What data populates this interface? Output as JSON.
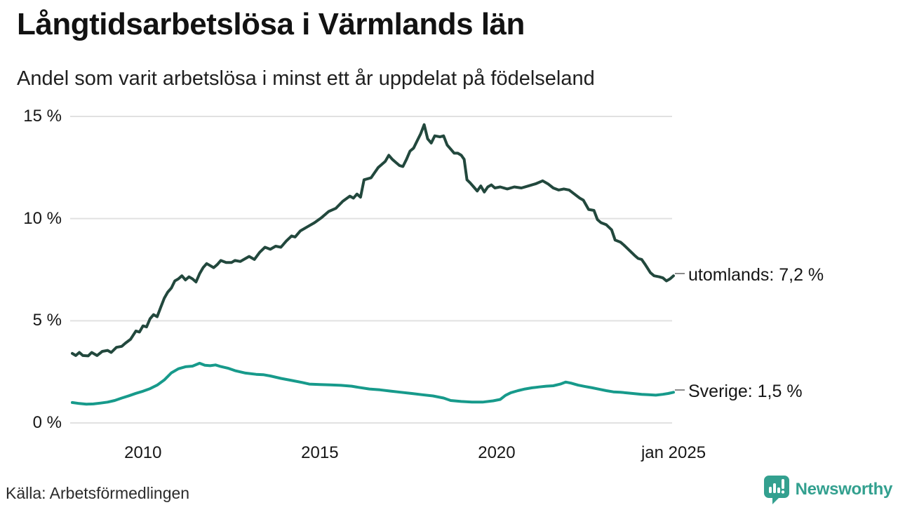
{
  "header": {
    "title": "Långtidsarbetslösa i Värmlands län",
    "subtitle": "Andel som varit arbetslösa i minst ett år uppdelat på födelseland"
  },
  "chart_data": {
    "type": "line",
    "title": "Långtidsarbetslösa i Värmlands län",
    "subtitle": "Andel som varit arbetslösa i minst ett år uppdelat på födelseland",
    "grid": "horizontal",
    "legend_position": "right-end-labels",
    "x_axis": {
      "min": 2008,
      "max": 2025,
      "ticks": [
        {
          "value": 2010,
          "label": "2010"
        },
        {
          "value": 2015,
          "label": "2015"
        },
        {
          "value": 2020,
          "label": "2020"
        },
        {
          "value": 2025,
          "label": "jan 2025"
        }
      ]
    },
    "y_axis": {
      "min": 0,
      "max": 15,
      "unit": "%",
      "ticks": [
        {
          "value": 0,
          "label": "0 %"
        },
        {
          "value": 5,
          "label": "5 %"
        },
        {
          "value": 10,
          "label": "10 %"
        },
        {
          "value": 15,
          "label": "15 %"
        }
      ]
    },
    "series": [
      {
        "name": "utomlands",
        "end_label": "utomlands: 7,2 %",
        "last_value": 7.2,
        "color": "#22483d",
        "points": [
          [
            2008.0,
            3.4
          ],
          [
            2008.1,
            3.3
          ],
          [
            2008.2,
            3.45
          ],
          [
            2008.3,
            3.3
          ],
          [
            2008.45,
            3.28
          ],
          [
            2008.55,
            3.45
          ],
          [
            2008.7,
            3.3
          ],
          [
            2008.85,
            3.5
          ],
          [
            2009.0,
            3.55
          ],
          [
            2009.1,
            3.45
          ],
          [
            2009.25,
            3.7
          ],
          [
            2009.4,
            3.75
          ],
          [
            2009.5,
            3.9
          ],
          [
            2009.65,
            4.1
          ],
          [
            2009.8,
            4.5
          ],
          [
            2009.9,
            4.45
          ],
          [
            2010.0,
            4.75
          ],
          [
            2010.1,
            4.7
          ],
          [
            2010.2,
            5.1
          ],
          [
            2010.3,
            5.3
          ],
          [
            2010.4,
            5.2
          ],
          [
            2010.5,
            5.65
          ],
          [
            2010.6,
            6.1
          ],
          [
            2010.7,
            6.4
          ],
          [
            2010.8,
            6.6
          ],
          [
            2010.9,
            6.95
          ],
          [
            2011.0,
            7.05
          ],
          [
            2011.1,
            7.2
          ],
          [
            2011.2,
            7.0
          ],
          [
            2011.3,
            7.15
          ],
          [
            2011.4,
            7.05
          ],
          [
            2011.5,
            6.9
          ],
          [
            2011.6,
            7.3
          ],
          [
            2011.7,
            7.6
          ],
          [
            2011.8,
            7.8
          ],
          [
            2011.9,
            7.7
          ],
          [
            2012.0,
            7.6
          ],
          [
            2012.1,
            7.75
          ],
          [
            2012.2,
            7.95
          ],
          [
            2012.35,
            7.85
          ],
          [
            2012.5,
            7.85
          ],
          [
            2012.6,
            7.95
          ],
          [
            2012.75,
            7.9
          ],
          [
            2012.9,
            8.05
          ],
          [
            2013.0,
            8.15
          ],
          [
            2013.15,
            8.0
          ],
          [
            2013.3,
            8.35
          ],
          [
            2013.45,
            8.6
          ],
          [
            2013.6,
            8.5
          ],
          [
            2013.75,
            8.65
          ],
          [
            2013.9,
            8.6
          ],
          [
            2014.05,
            8.9
          ],
          [
            2014.2,
            9.15
          ],
          [
            2014.3,
            9.1
          ],
          [
            2014.45,
            9.4
          ],
          [
            2014.65,
            9.6
          ],
          [
            2014.85,
            9.8
          ],
          [
            2015.05,
            10.05
          ],
          [
            2015.25,
            10.35
          ],
          [
            2015.45,
            10.5
          ],
          [
            2015.65,
            10.85
          ],
          [
            2015.85,
            11.1
          ],
          [
            2015.95,
            11.0
          ],
          [
            2016.05,
            11.2
          ],
          [
            2016.15,
            11.05
          ],
          [
            2016.25,
            11.9
          ],
          [
            2016.35,
            11.95
          ],
          [
            2016.45,
            12.0
          ],
          [
            2016.55,
            12.25
          ],
          [
            2016.65,
            12.5
          ],
          [
            2016.75,
            12.65
          ],
          [
            2016.85,
            12.8
          ],
          [
            2016.95,
            13.1
          ],
          [
            2017.05,
            12.9
          ],
          [
            2017.15,
            12.75
          ],
          [
            2017.25,
            12.6
          ],
          [
            2017.35,
            12.55
          ],
          [
            2017.45,
            12.9
          ],
          [
            2017.55,
            13.3
          ],
          [
            2017.65,
            13.45
          ],
          [
            2017.75,
            13.8
          ],
          [
            2017.85,
            14.15
          ],
          [
            2017.95,
            14.6
          ],
          [
            2018.05,
            13.9
          ],
          [
            2018.15,
            13.7
          ],
          [
            2018.25,
            14.05
          ],
          [
            2018.4,
            14.0
          ],
          [
            2018.5,
            14.05
          ],
          [
            2018.6,
            13.6
          ],
          [
            2018.7,
            13.4
          ],
          [
            2018.8,
            13.2
          ],
          [
            2018.9,
            13.2
          ],
          [
            2019.0,
            13.1
          ],
          [
            2019.08,
            12.9
          ],
          [
            2019.16,
            11.9
          ],
          [
            2019.25,
            11.75
          ],
          [
            2019.35,
            11.55
          ],
          [
            2019.45,
            11.35
          ],
          [
            2019.55,
            11.6
          ],
          [
            2019.65,
            11.3
          ],
          [
            2019.75,
            11.55
          ],
          [
            2019.85,
            11.65
          ],
          [
            2019.95,
            11.5
          ],
          [
            2020.1,
            11.55
          ],
          [
            2020.3,
            11.45
          ],
          [
            2020.5,
            11.55
          ],
          [
            2020.7,
            11.5
          ],
          [
            2020.9,
            11.6
          ],
          [
            2021.1,
            11.7
          ],
          [
            2021.3,
            11.85
          ],
          [
            2021.45,
            11.7
          ],
          [
            2021.6,
            11.5
          ],
          [
            2021.75,
            11.4
          ],
          [
            2021.9,
            11.45
          ],
          [
            2022.05,
            11.4
          ],
          [
            2022.2,
            11.2
          ],
          [
            2022.35,
            11.0
          ],
          [
            2022.45,
            10.9
          ],
          [
            2022.6,
            10.45
          ],
          [
            2022.75,
            10.4
          ],
          [
            2022.85,
            9.95
          ],
          [
            2022.95,
            9.8
          ],
          [
            2023.1,
            9.7
          ],
          [
            2023.25,
            9.45
          ],
          [
            2023.35,
            8.95
          ],
          [
            2023.5,
            8.85
          ],
          [
            2023.6,
            8.7
          ],
          [
            2023.75,
            8.45
          ],
          [
            2023.9,
            8.2
          ],
          [
            2024.0,
            8.05
          ],
          [
            2024.1,
            8.0
          ],
          [
            2024.2,
            7.75
          ],
          [
            2024.35,
            7.35
          ],
          [
            2024.45,
            7.2
          ],
          [
            2024.6,
            7.15
          ],
          [
            2024.7,
            7.1
          ],
          [
            2024.8,
            6.95
          ],
          [
            2024.9,
            7.05
          ],
          [
            2025.0,
            7.2
          ]
        ]
      },
      {
        "name": "Sverige",
        "end_label": "Sverige: 1,5 %",
        "last_value": 1.5,
        "color": "#179a8b",
        "points": [
          [
            2008.0,
            1.0
          ],
          [
            2008.2,
            0.95
          ],
          [
            2008.4,
            0.92
          ],
          [
            2008.6,
            0.93
          ],
          [
            2008.8,
            0.97
          ],
          [
            2009.0,
            1.02
          ],
          [
            2009.2,
            1.1
          ],
          [
            2009.4,
            1.22
          ],
          [
            2009.6,
            1.33
          ],
          [
            2009.8,
            1.45
          ],
          [
            2010.0,
            1.55
          ],
          [
            2010.2,
            1.68
          ],
          [
            2010.4,
            1.85
          ],
          [
            2010.6,
            2.1
          ],
          [
            2010.8,
            2.45
          ],
          [
            2011.0,
            2.65
          ],
          [
            2011.2,
            2.75
          ],
          [
            2011.4,
            2.78
          ],
          [
            2011.6,
            2.92
          ],
          [
            2011.75,
            2.82
          ],
          [
            2011.9,
            2.8
          ],
          [
            2012.05,
            2.84
          ],
          [
            2012.2,
            2.76
          ],
          [
            2012.4,
            2.68
          ],
          [
            2012.6,
            2.56
          ],
          [
            2012.9,
            2.44
          ],
          [
            2013.2,
            2.38
          ],
          [
            2013.4,
            2.36
          ],
          [
            2013.6,
            2.3
          ],
          [
            2013.9,
            2.18
          ],
          [
            2014.2,
            2.08
          ],
          [
            2014.5,
            1.98
          ],
          [
            2014.7,
            1.9
          ],
          [
            2015.0,
            1.88
          ],
          [
            2015.3,
            1.86
          ],
          [
            2015.6,
            1.84
          ],
          [
            2015.9,
            1.8
          ],
          [
            2016.1,
            1.74
          ],
          [
            2016.4,
            1.66
          ],
          [
            2016.7,
            1.62
          ],
          [
            2017.0,
            1.56
          ],
          [
            2017.3,
            1.5
          ],
          [
            2017.6,
            1.44
          ],
          [
            2017.9,
            1.38
          ],
          [
            2018.2,
            1.32
          ],
          [
            2018.5,
            1.22
          ],
          [
            2018.7,
            1.1
          ],
          [
            2019.0,
            1.05
          ],
          [
            2019.3,
            1.02
          ],
          [
            2019.6,
            1.02
          ],
          [
            2019.9,
            1.08
          ],
          [
            2020.1,
            1.15
          ],
          [
            2020.25,
            1.35
          ],
          [
            2020.4,
            1.48
          ],
          [
            2020.6,
            1.58
          ],
          [
            2020.8,
            1.66
          ],
          [
            2021.0,
            1.72
          ],
          [
            2021.2,
            1.76
          ],
          [
            2021.4,
            1.8
          ],
          [
            2021.6,
            1.82
          ],
          [
            2021.8,
            1.9
          ],
          [
            2021.95,
            2.0
          ],
          [
            2022.1,
            1.95
          ],
          [
            2022.3,
            1.85
          ],
          [
            2022.5,
            1.78
          ],
          [
            2022.7,
            1.72
          ],
          [
            2022.9,
            1.65
          ],
          [
            2023.1,
            1.58
          ],
          [
            2023.3,
            1.52
          ],
          [
            2023.5,
            1.5
          ],
          [
            2023.7,
            1.47
          ],
          [
            2023.9,
            1.43
          ],
          [
            2024.1,
            1.4
          ],
          [
            2024.3,
            1.38
          ],
          [
            2024.5,
            1.36
          ],
          [
            2024.7,
            1.4
          ],
          [
            2024.85,
            1.44
          ],
          [
            2025.0,
            1.5
          ]
        ]
      }
    ],
    "grid_color": "#e1e1e1"
  },
  "footer": {
    "source": "Källa: Arbetsförmedlingen",
    "brand_name": "Newsworthy",
    "brand_color": "#33a08f"
  }
}
